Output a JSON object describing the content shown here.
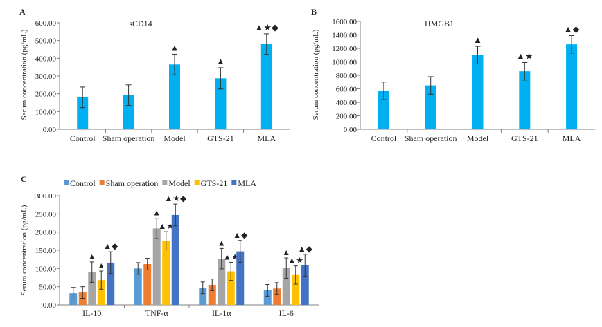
{
  "chart_data": [
    {
      "panel": "A",
      "type": "bar",
      "title": "sCD14",
      "ylabel": "Serum concentration (pg/mL)",
      "ylim": [
        0,
        600
      ],
      "yticks": [
        0,
        100,
        200,
        300,
        400,
        500,
        600
      ],
      "ytick_labels": [
        "0.00",
        "100.00",
        "200.00",
        "300.00",
        "400.00",
        "500.00",
        "600.00"
      ],
      "categories": [
        "Control",
        "Sham operation",
        "Model",
        "GTS-21",
        "MLA"
      ],
      "values": [
        180,
        192,
        365,
        287,
        480
      ],
      "errors": [
        58,
        58,
        58,
        60,
        58
      ],
      "annotations": [
        "",
        "",
        "▲",
        "▲",
        "▲★◆"
      ],
      "color": "#00b0f0",
      "grid": false
    },
    {
      "panel": "B",
      "type": "bar",
      "title": "HMGB1",
      "ylabel": "Serum concentration (pg/mL)",
      "ylim": [
        0,
        1600
      ],
      "yticks": [
        0,
        200,
        400,
        600,
        800,
        1000,
        1200,
        1400,
        1600
      ],
      "ytick_labels": [
        "0.00",
        "200.00",
        "400.00",
        "600.00",
        "800.00",
        "1000.00",
        "1200.00",
        "1400.00",
        "1600.00"
      ],
      "categories": [
        "Control",
        "Sham operation",
        "Model",
        "GTS-21",
        "MLA"
      ],
      "values": [
        570,
        650,
        1100,
        860,
        1260
      ],
      "errors": [
        130,
        130,
        130,
        130,
        130
      ],
      "annotations": [
        "",
        "",
        "▲",
        "▲★",
        "▲◆"
      ],
      "color": "#00b0f0",
      "grid": false
    },
    {
      "panel": "C",
      "type": "bar",
      "title": "",
      "ylabel": "Serum concentration (pg/mL)",
      "ylim": [
        0,
        300
      ],
      "yticks": [
        0,
        50,
        100,
        150,
        200,
        250,
        300
      ],
      "ytick_labels": [
        "0.00",
        "50.00",
        "100.00",
        "150.00",
        "200.00",
        "250.00",
        "300.00"
      ],
      "categories": [
        "IL-10",
        "TNF-α",
        "IL-1α",
        "IL-6"
      ],
      "legend_position": "top-left",
      "grid": false,
      "series": [
        {
          "name": "Control",
          "color": "#5b9bd5",
          "values": [
            32,
            100,
            47,
            40
          ],
          "errors": [
            16,
            16,
            16,
            16
          ],
          "annotations": [
            "",
            "",
            "",
            ""
          ]
        },
        {
          "name": "Sham operation",
          "color": "#ed7d31",
          "values": [
            34,
            112,
            55,
            45
          ],
          "errors": [
            16,
            16,
            16,
            16
          ],
          "annotations": [
            "",
            "",
            "",
            ""
          ]
        },
        {
          "name": "Model",
          "color": "#a5a5a5",
          "values": [
            90,
            210,
            127,
            101
          ],
          "errors": [
            28,
            28,
            28,
            28
          ],
          "annotations": [
            "▲",
            "▲",
            "▲",
            "▲"
          ]
        },
        {
          "name": "GTS-21",
          "color": "#ffc000",
          "values": [
            68,
            176,
            92,
            82
          ],
          "errors": [
            25,
            25,
            25,
            25
          ],
          "annotations": [
            "▲",
            "▲★",
            "▲★",
            "▲★"
          ]
        },
        {
          "name": "MLA",
          "color": "#4472c4",
          "values": [
            116,
            247,
            147,
            109
          ],
          "errors": [
            30,
            30,
            30,
            30
          ],
          "annotations": [
            "▲◆",
            "▲★◆",
            "▲◆",
            "▲◆"
          ]
        }
      ]
    }
  ],
  "panel_labels": [
    "A",
    "B",
    "C"
  ]
}
